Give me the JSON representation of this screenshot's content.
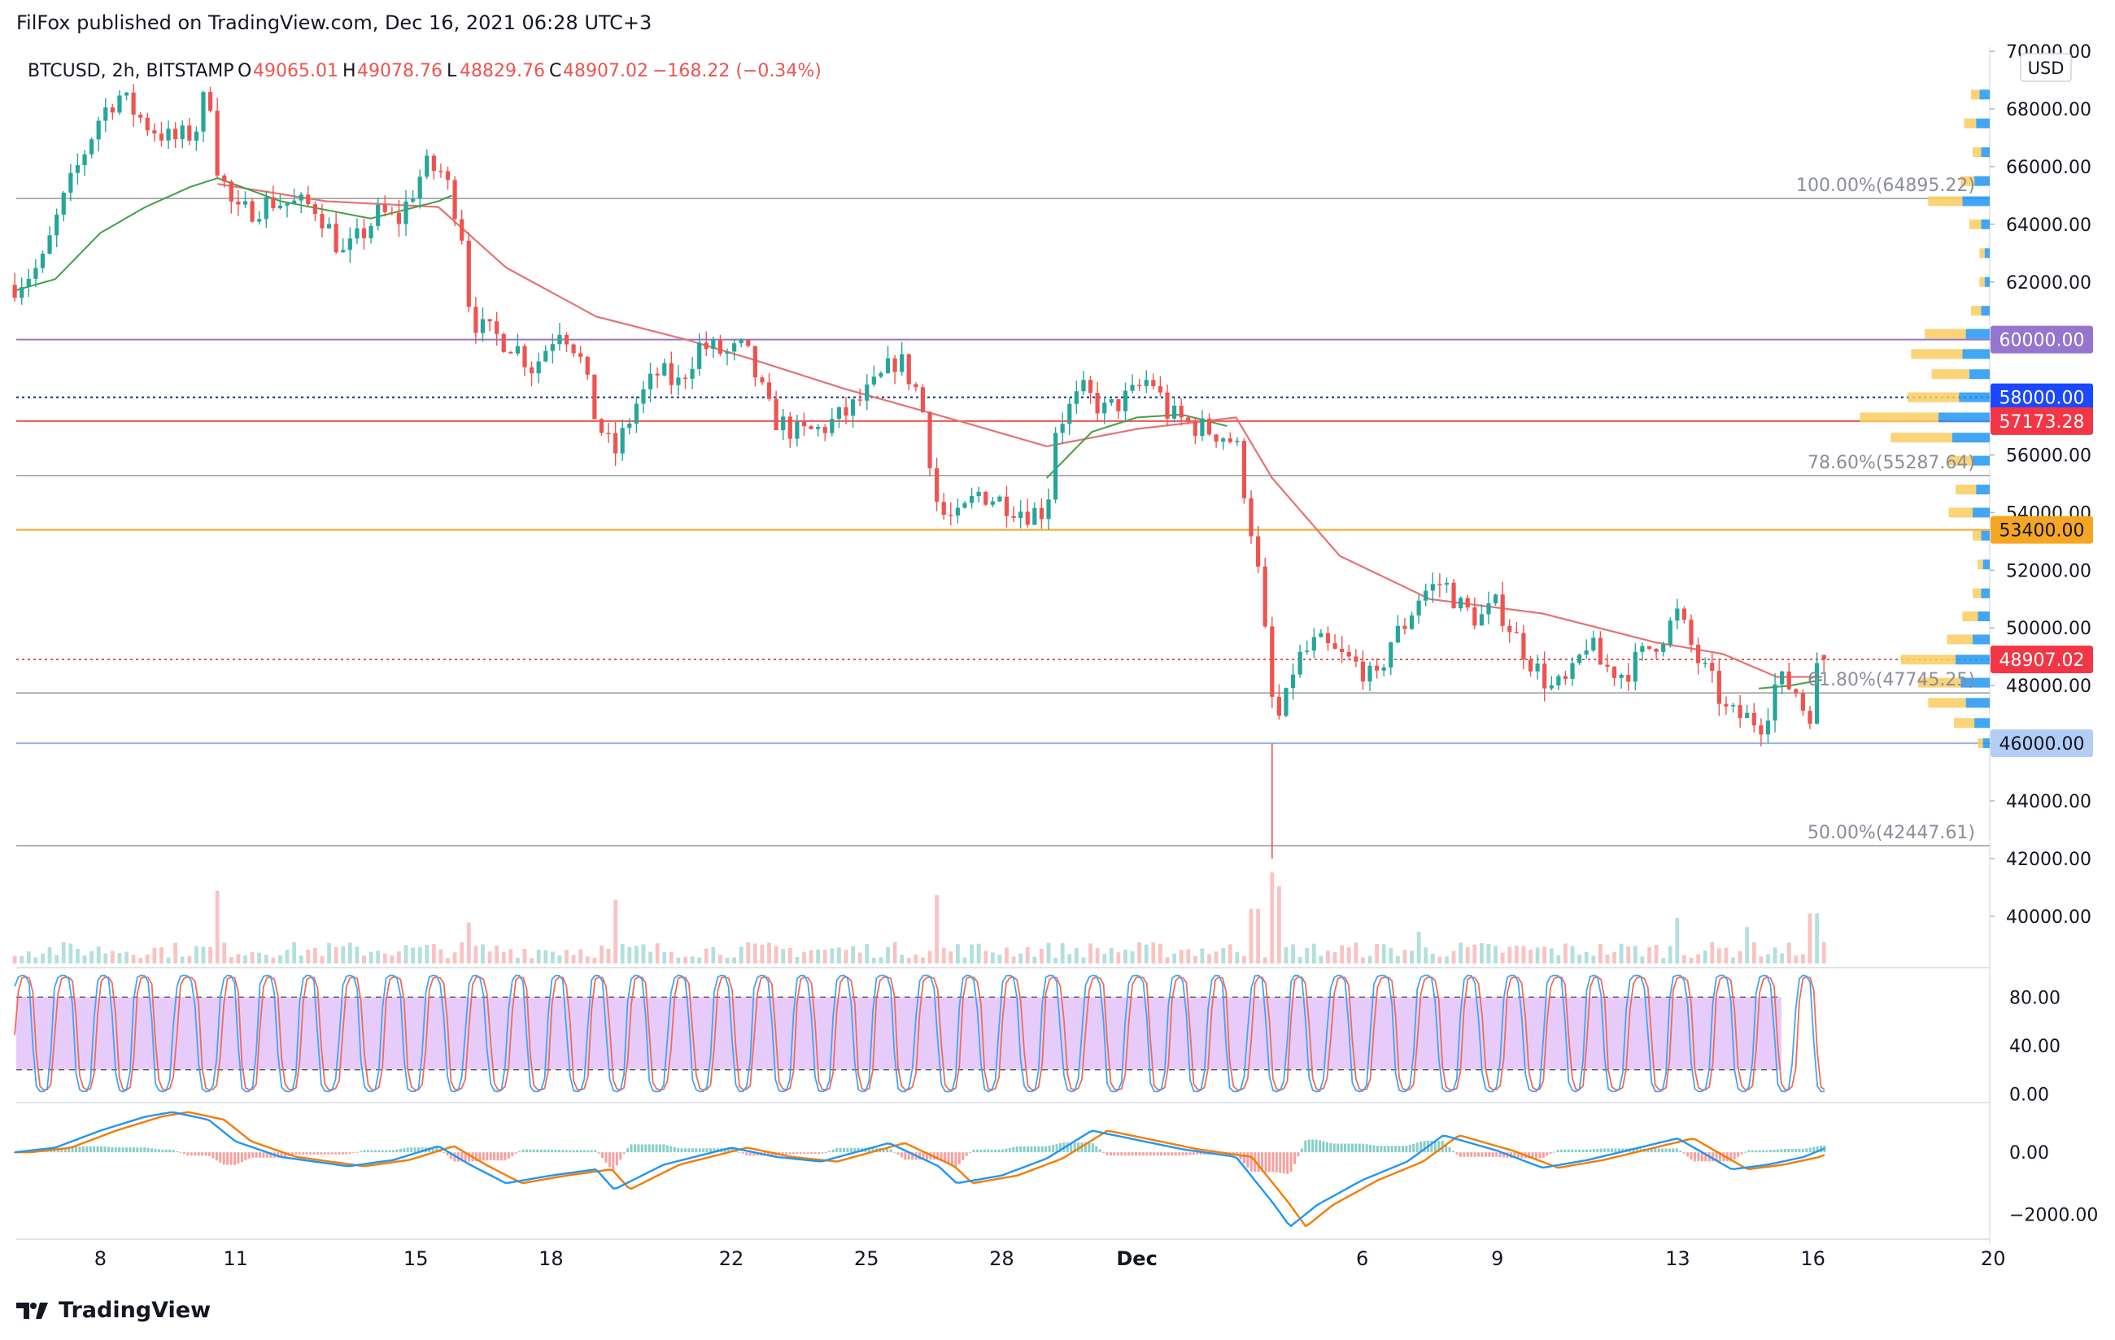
{
  "publisher": {
    "text": "FilFox published on TradingView.com, Dec 16, 2021 06:28 UTC+3"
  },
  "brand": {
    "logo_icon": "tradingview-logo-icon",
    "name": "TradingView"
  },
  "colors": {
    "up": "#26a69a",
    "down": "#ef5350",
    "ma_red": "#e57373",
    "ma_green": "#43a047",
    "stoch_k": "#42a5f5",
    "stoch_d": "#ef6c5a",
    "macd": "#2196f3",
    "signal": "#f57c00",
    "rsi_band": "#e7ccfb",
    "vp_up": "#2196f3",
    "vp_down": "#f9cd5f"
  },
  "chart_data": {
    "type": "candlestick",
    "title": "BTCUSD, 2h, BITSTAMP",
    "symbol": "BTCUSD",
    "interval": "2h",
    "exchange": "BITSTAMP",
    "ohlc_legend": {
      "o_label": "O",
      "open": "49065.01",
      "h_label": "H",
      "high": "49078.76",
      "l_label": "L",
      "low": "48829.76",
      "c_label": "C",
      "close": "48907.02",
      "change": "−168.22 (−0.34%)"
    },
    "currency": "USD",
    "y_axis": {
      "range": [
        38500,
        70200
      ],
      "ticks": [
        "40000.00",
        "42000.00",
        "44000.00",
        "46000.00",
        "48000.00",
        "50000.00",
        "52000.00",
        "54000.00",
        "56000.00",
        "58000.00",
        "60000.00",
        "62000.00",
        "64000.00",
        "66000.00",
        "68000.00",
        "70000.00"
      ]
    },
    "x_axis": {
      "labels": [
        {
          "label": "8",
          "t": -7
        },
        {
          "label": "11",
          "t": -4
        },
        {
          "label": "15",
          "t": 0
        },
        {
          "label": "18",
          "t": 3
        },
        {
          "label": "22",
          "t": 7
        },
        {
          "label": "25",
          "t": 10
        },
        {
          "label": "28",
          "t": 13
        },
        {
          "label": "Dec",
          "t": 16
        },
        {
          "label": "6",
          "t": 21
        },
        {
          "label": "9",
          "t": 24
        },
        {
          "label": "13",
          "t": 28
        },
        {
          "label": "16",
          "t": 31
        },
        {
          "label": "20",
          "t": 35
        }
      ]
    },
    "price_path": [
      {
        "t": -8.9,
        "p": 61900
      },
      {
        "t": -8.3,
        "p": 62600
      },
      {
        "t": -7.9,
        "p": 64500
      },
      {
        "t": -7.5,
        "p": 66000
      },
      {
        "t": -7.0,
        "p": 67800
      },
      {
        "t": -6.6,
        "p": 68500
      },
      {
        "t": -6.0,
        "p": 67500
      },
      {
        "t": -5.4,
        "p": 66900
      },
      {
        "t": -4.9,
        "p": 67200
      },
      {
        "t": -4.6,
        "p": 68900
      },
      {
        "t": -4.4,
        "p": 66000
      },
      {
        "t": -4.0,
        "p": 64300
      },
      {
        "t": -3.2,
        "p": 64800
      },
      {
        "t": -2.2,
        "p": 64600
      },
      {
        "t": -1.6,
        "p": 62900
      },
      {
        "t": -0.8,
        "p": 64400
      },
      {
        "t": -0.4,
        "p": 64100
      },
      {
        "t": 0.2,
        "p": 66000
      },
      {
        "t": 0.6,
        "p": 65800
      },
      {
        "t": 1.0,
        "p": 64000
      },
      {
        "t": 1.2,
        "p": 61000
      },
      {
        "t": 1.4,
        "p": 60400
      },
      {
        "t": 2.2,
        "p": 59800
      },
      {
        "t": 2.6,
        "p": 59000
      },
      {
        "t": 3.2,
        "p": 60500
      },
      {
        "t": 3.6,
        "p": 59600
      },
      {
        "t": 4.0,
        "p": 57200
      },
      {
        "t": 4.4,
        "p": 56000
      },
      {
        "t": 4.9,
        "p": 57800
      },
      {
        "t": 5.4,
        "p": 58900
      },
      {
        "t": 5.8,
        "p": 58400
      },
      {
        "t": 6.3,
        "p": 59800
      },
      {
        "t": 6.9,
        "p": 59500
      },
      {
        "t": 7.3,
        "p": 59700
      },
      {
        "t": 7.9,
        "p": 57300
      },
      {
        "t": 8.5,
        "p": 56700
      },
      {
        "t": 9.0,
        "p": 56900
      },
      {
        "t": 9.6,
        "p": 57500
      },
      {
        "t": 10.2,
        "p": 58400
      },
      {
        "t": 10.7,
        "p": 59400
      },
      {
        "t": 11.2,
        "p": 58000
      },
      {
        "t": 11.6,
        "p": 54000
      },
      {
        "t": 12.0,
        "p": 53700
      },
      {
        "t": 12.5,
        "p": 54700
      },
      {
        "t": 13.0,
        "p": 54400
      },
      {
        "t": 13.6,
        "p": 54000
      },
      {
        "t": 14.0,
        "p": 54100
      },
      {
        "t": 14.2,
        "p": 57000
      },
      {
        "t": 14.8,
        "p": 58200
      },
      {
        "t": 15.3,
        "p": 57500
      },
      {
        "t": 15.9,
        "p": 58100
      },
      {
        "t": 16.3,
        "p": 58700
      },
      {
        "t": 16.7,
        "p": 57400
      },
      {
        "t": 17.3,
        "p": 57000
      },
      {
        "t": 17.9,
        "p": 56700
      },
      {
        "t": 18.2,
        "p": 56400
      },
      {
        "t": 18.5,
        "p": 53800
      },
      {
        "t": 18.7,
        "p": 51800
      },
      {
        "t": 19.0,
        "p": 47500
      },
      {
        "t": 19.2,
        "p": 46700
      },
      {
        "t": 19.5,
        "p": 48800
      },
      {
        "t": 20.0,
        "p": 49500
      },
      {
        "t": 20.4,
        "p": 49100
      },
      {
        "t": 21.0,
        "p": 48600
      },
      {
        "t": 21.3,
        "p": 48000
      },
      {
        "t": 21.6,
        "p": 49500
      },
      {
        "t": 21.9,
        "p": 50000
      },
      {
        "t": 22.3,
        "p": 51200
      },
      {
        "t": 22.8,
        "p": 51600
      },
      {
        "t": 23.2,
        "p": 50700
      },
      {
        "t": 23.6,
        "p": 50300
      },
      {
        "t": 24.0,
        "p": 50800
      },
      {
        "t": 24.4,
        "p": 49700
      },
      {
        "t": 24.8,
        "p": 48700
      },
      {
        "t": 25.2,
        "p": 47900
      },
      {
        "t": 25.6,
        "p": 48100
      },
      {
        "t": 26.0,
        "p": 49600
      },
      {
        "t": 26.3,
        "p": 48700
      },
      {
        "t": 26.8,
        "p": 48400
      },
      {
        "t": 27.3,
        "p": 49200
      },
      {
        "t": 27.7,
        "p": 49800
      },
      {
        "t": 28.0,
        "p": 50500
      },
      {
        "t": 28.4,
        "p": 49000
      },
      {
        "t": 28.8,
        "p": 48000
      },
      {
        "t": 29.1,
        "p": 47000
      },
      {
        "t": 29.5,
        "p": 46900
      },
      {
        "t": 29.9,
        "p": 46700
      },
      {
        "t": 30.2,
        "p": 48200
      },
      {
        "t": 30.6,
        "p": 47900
      },
      {
        "t": 30.9,
        "p": 46800
      },
      {
        "t": 31.1,
        "p": 48600
      },
      {
        "t": 31.3,
        "p": 48900
      }
    ],
    "volume_spikes": [
      {
        "t": -4.4,
        "v": 0.8
      },
      {
        "t": 1.2,
        "v": 0.45
      },
      {
        "t": 4.4,
        "v": 0.7
      },
      {
        "t": 11.6,
        "v": 0.75
      },
      {
        "t": 18.6,
        "v": 0.6
      },
      {
        "t": 19.0,
        "v": 1.0
      },
      {
        "t": 19.2,
        "v": 0.85
      },
      {
        "t": 22.3,
        "v": 0.35
      },
      {
        "t": 28.0,
        "v": 0.5
      },
      {
        "t": 29.5,
        "v": 0.4
      },
      {
        "t": 31.0,
        "v": 0.55
      }
    ],
    "ma_slow_path": [
      {
        "t": -4.4,
        "p": 65400
      },
      {
        "t": -2.0,
        "p": 64800
      },
      {
        "t": 0.5,
        "p": 64600
      },
      {
        "t": 2.0,
        "p": 62500
      },
      {
        "t": 4.0,
        "p": 60800
      },
      {
        "t": 6.0,
        "p": 60000
      },
      {
        "t": 7.5,
        "p": 59300
      },
      {
        "t": 9.5,
        "p": 58300
      },
      {
        "t": 12.0,
        "p": 57200
      },
      {
        "t": 14.0,
        "p": 56300
      },
      {
        "t": 16.0,
        "p": 56900
      },
      {
        "t": 18.2,
        "p": 57300
      },
      {
        "t": 19.0,
        "p": 55200
      },
      {
        "t": 20.5,
        "p": 52500
      },
      {
        "t": 22.5,
        "p": 51000
      },
      {
        "t": 25.0,
        "p": 50500
      },
      {
        "t": 27.5,
        "p": 49500
      },
      {
        "t": 29.0,
        "p": 49100
      },
      {
        "t": 30.2,
        "p": 48300
      },
      {
        "t": 31.2,
        "p": 48300
      }
    ],
    "ma_fast_green_1": [
      {
        "t": -8.9,
        "p": 61700
      },
      {
        "t": -8.0,
        "p": 62100
      },
      {
        "t": -7.0,
        "p": 63700
      },
      {
        "t": -6.0,
        "p": 64600
      },
      {
        "t": -5.0,
        "p": 65300
      },
      {
        "t": -4.4,
        "p": 65600
      },
      {
        "t": -3.0,
        "p": 64800
      },
      {
        "t": -1.0,
        "p": 64200
      },
      {
        "t": 0.5,
        "p": 64800
      },
      {
        "t": 0.8,
        "p": 65000
      }
    ],
    "ma_fast_green_2": [
      {
        "t": 14.0,
        "p": 55200
      },
      {
        "t": 15.0,
        "p": 56800
      },
      {
        "t": 16.0,
        "p": 57300
      },
      {
        "t": 17.0,
        "p": 57400
      },
      {
        "t": 18.0,
        "p": 57000
      }
    ],
    "ma_fast_green_3": [
      {
        "t": 29.8,
        "p": 47900
      },
      {
        "t": 30.5,
        "p": 48000
      },
      {
        "t": 31.2,
        "p": 48200
      }
    ],
    "horizontal_levels": [
      {
        "price": 64895.22,
        "label": "100.00%(64895.22)",
        "color": "#9e9e9e",
        "style": "solid",
        "kind": "fib"
      },
      {
        "price": 60000,
        "label": "60000.00",
        "color": "#9575cd",
        "style": "solid",
        "kind": "line"
      },
      {
        "price": 58000,
        "label": "58000.00",
        "color": "#0f2e8a",
        "style": "dotted",
        "kind": "line"
      },
      {
        "price": 57173.28,
        "label": "57173.28",
        "color": "#ef5350",
        "style": "solid",
        "kind": "line"
      },
      {
        "price": 55287.64,
        "label": "78.60%(55287.64)",
        "color": "#9e9e9e",
        "style": "solid",
        "kind": "fib"
      },
      {
        "price": 53400,
        "label": "53400.00",
        "color": "#f5a623",
        "style": "solid",
        "kind": "line"
      },
      {
        "price": 48907.02,
        "label": "48907.02",
        "color": "#ef5350",
        "style": "dotted",
        "kind": "last"
      },
      {
        "price": 47745.25,
        "label": "61.80%(47745.25)",
        "color": "#9e9e9e",
        "style": "solid",
        "kind": "fib"
      },
      {
        "price": 46000,
        "label": "46000.00",
        "color": "#90b4e8",
        "style": "solid",
        "kind": "line"
      },
      {
        "price": 42447.61,
        "label": "50.00%(42447.61)",
        "color": "#9e9e9e",
        "style": "solid",
        "kind": "fib"
      }
    ],
    "price_tags": [
      {
        "label": "60000.00",
        "price": 60000,
        "bg": "#9575cd",
        "fg": "#ffffff"
      },
      {
        "label": "58000.00",
        "price": 58000,
        "bg": "#1a47ff",
        "fg": "#ffffff"
      },
      {
        "label": "57173.28",
        "price": 57173.28,
        "bg": "#f23645",
        "fg": "#ffffff"
      },
      {
        "label": "53400.00",
        "price": 53400,
        "bg": "#f5a623",
        "fg": "#131722"
      },
      {
        "label": "48907.02",
        "price": 48907.02,
        "bg": "#f23645",
        "fg": "#ffffff"
      },
      {
        "label": "46000.00",
        "price": 46000,
        "bg": "#b3cdf4",
        "fg": "#131722"
      }
    ],
    "volume_profile": [
      {
        "p": 68500,
        "up": 0.06,
        "down": 0.05
      },
      {
        "p": 67500,
        "up": 0.08,
        "down": 0.07
      },
      {
        "p": 66500,
        "up": 0.05,
        "down": 0.05
      },
      {
        "p": 65500,
        "up": 0.09,
        "down": 0.08
      },
      {
        "p": 64800,
        "up": 0.16,
        "down": 0.2
      },
      {
        "p": 64000,
        "up": 0.05,
        "down": 0.07
      },
      {
        "p": 63000,
        "up": 0.03,
        "down": 0.03
      },
      {
        "p": 62000,
        "up": 0.03,
        "down": 0.03
      },
      {
        "p": 61000,
        "up": 0.05,
        "down": 0.06
      },
      {
        "p": 60200,
        "up": 0.14,
        "down": 0.24
      },
      {
        "p": 59500,
        "up": 0.16,
        "down": 0.3
      },
      {
        "p": 58800,
        "up": 0.12,
        "down": 0.22
      },
      {
        "p": 58000,
        "up": 0.18,
        "down": 0.3
      },
      {
        "p": 57300,
        "up": 0.3,
        "down": 0.46
      },
      {
        "p": 56600,
        "up": 0.22,
        "down": 0.36
      },
      {
        "p": 55800,
        "up": 0.1,
        "down": 0.14
      },
      {
        "p": 54800,
        "up": 0.08,
        "down": 0.12
      },
      {
        "p": 54000,
        "up": 0.1,
        "down": 0.14
      },
      {
        "p": 53200,
        "up": 0.05,
        "down": 0.05
      },
      {
        "p": 52200,
        "up": 0.04,
        "down": 0.03
      },
      {
        "p": 51200,
        "up": 0.05,
        "down": 0.05
      },
      {
        "p": 50400,
        "up": 0.07,
        "down": 0.09
      },
      {
        "p": 49600,
        "up": 0.1,
        "down": 0.15
      },
      {
        "p": 48900,
        "up": 0.2,
        "down": 0.32
      },
      {
        "p": 48100,
        "up": 0.17,
        "down": 0.25
      },
      {
        "p": 47400,
        "up": 0.14,
        "down": 0.22
      },
      {
        "p": 46700,
        "up": 0.09,
        "down": 0.12
      },
      {
        "p": 46000,
        "up": 0.04,
        "down": 0.03
      }
    ],
    "stoch": {
      "ticks": [
        "80.00",
        "40.00",
        "0.00"
      ],
      "ticks_values": [
        80,
        40,
        0
      ],
      "range": [
        -3,
        103
      ],
      "band": [
        20,
        80
      ]
    },
    "macd": {
      "ticks": [
        "0.00",
        "−2000.00"
      ],
      "ticks_values": [
        0,
        -2000
      ],
      "range": [
        -2700,
        1500
      ],
      "path": [
        {
          "t": -8.9,
          "m": 0
        },
        {
          "t": -8.0,
          "m": 150
        },
        {
          "t": -7.0,
          "m": 700
        },
        {
          "t": -6.0,
          "m": 1150
        },
        {
          "t": -5.4,
          "m": 1300
        },
        {
          "t": -4.6,
          "m": 1050
        },
        {
          "t": -4.0,
          "m": 350
        },
        {
          "t": -3.0,
          "m": -150
        },
        {
          "t": -1.5,
          "m": -450
        },
        {
          "t": -0.5,
          "m": -250
        },
        {
          "t": 0.5,
          "m": 200
        },
        {
          "t": 1.2,
          "m": -400
        },
        {
          "t": 2.0,
          "m": -1000
        },
        {
          "t": 3.0,
          "m": -750
        },
        {
          "t": 4.0,
          "m": -550
        },
        {
          "t": 4.4,
          "m": -1200
        },
        {
          "t": 5.5,
          "m": -400
        },
        {
          "t": 7.0,
          "m": 150
        },
        {
          "t": 8.0,
          "m": -150
        },
        {
          "t": 9.0,
          "m": -300
        },
        {
          "t": 10.5,
          "m": 300
        },
        {
          "t": 11.6,
          "m": -450
        },
        {
          "t": 12.0,
          "m": -1000
        },
        {
          "t": 13.0,
          "m": -750
        },
        {
          "t": 14.0,
          "m": -200
        },
        {
          "t": 15.0,
          "m": 700
        },
        {
          "t": 16.0,
          "m": 400
        },
        {
          "t": 17.0,
          "m": 100
        },
        {
          "t": 18.2,
          "m": -150
        },
        {
          "t": 19.0,
          "m": -1600
        },
        {
          "t": 19.4,
          "m": -2400
        },
        {
          "t": 20.0,
          "m": -1700
        },
        {
          "t": 21.0,
          "m": -900
        },
        {
          "t": 22.0,
          "m": -300
        },
        {
          "t": 22.8,
          "m": 550
        },
        {
          "t": 24.0,
          "m": 50
        },
        {
          "t": 25.0,
          "m": -500
        },
        {
          "t": 26.0,
          "m": -250
        },
        {
          "t": 27.0,
          "m": 100
        },
        {
          "t": 28.0,
          "m": 450
        },
        {
          "t": 29.2,
          "m": -550
        },
        {
          "t": 30.0,
          "m": -400
        },
        {
          "t": 30.8,
          "m": -150
        },
        {
          "t": 31.3,
          "m": 150
        }
      ]
    }
  }
}
